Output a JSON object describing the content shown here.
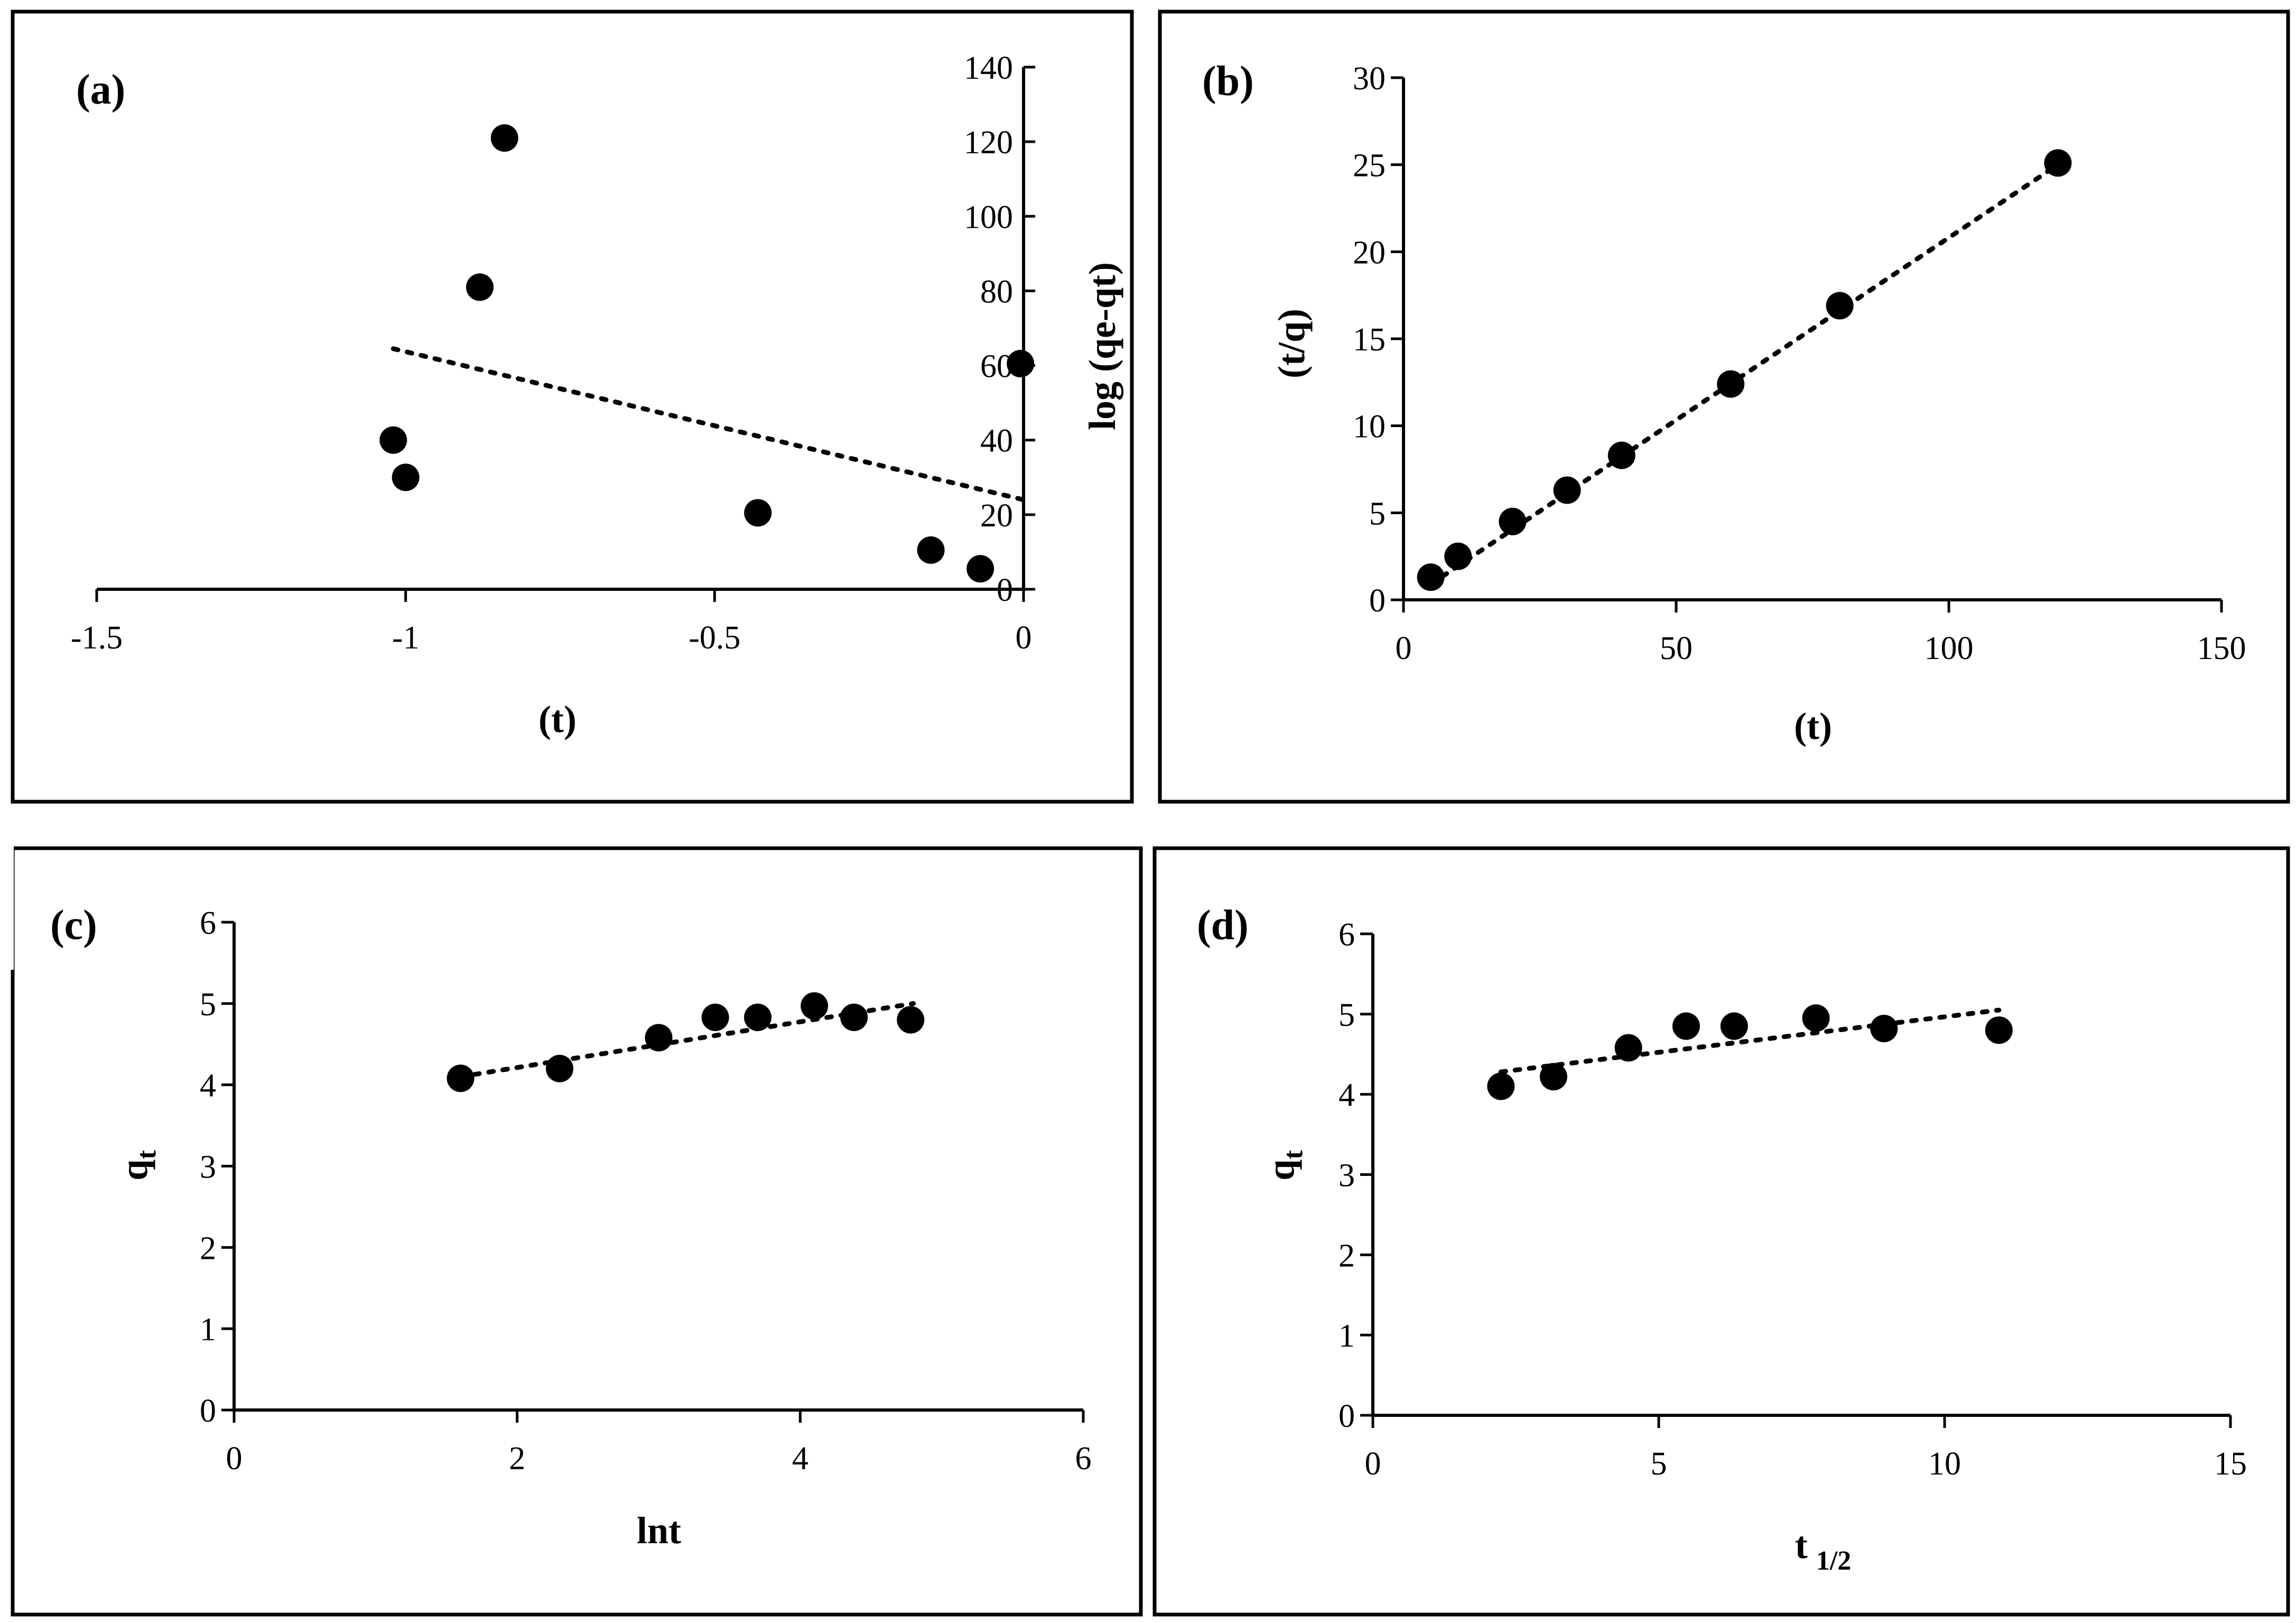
{
  "chart_data": [
    {
      "type": "scatter",
      "panel_label": "(a)",
      "xlabel": "(t)",
      "ylabel": "log (qe-qt)",
      "xlim": [
        -1.5,
        0
      ],
      "ylim": [
        0,
        140
      ],
      "xticks": [
        -1.5,
        -1,
        -0.5,
        0
      ],
      "yticks": [
        0,
        20,
        40,
        60,
        80,
        100,
        120,
        140
      ],
      "x": [
        -0.84,
        -0.88,
        -1.02,
        -1.0,
        -0.43,
        -0.15,
        -0.07,
        -0.005
      ],
      "y": [
        121,
        81,
        40,
        30,
        20.5,
        10.5,
        5.5,
        60.5
      ],
      "trendline": {
        "style": "dotted",
        "x": [
          -1.02,
          0
        ],
        "y": [
          64.5,
          24
        ]
      },
      "grid": false
    },
    {
      "type": "scatter",
      "panel_label": "(b)",
      "xlabel": "(t)",
      "ylabel": "(t/q)",
      "xlim": [
        0,
        150
      ],
      "ylim": [
        0,
        30
      ],
      "xticks": [
        0,
        50,
        100,
        150
      ],
      "yticks": [
        0,
        5,
        10,
        15,
        20,
        25,
        30
      ],
      "x": [
        5,
        10,
        20,
        30,
        40,
        60,
        80,
        120
      ],
      "y": [
        1.3,
        2.5,
        4.5,
        6.3,
        8.3,
        12.4,
        16.9,
        25.1
      ],
      "trendline": {
        "style": "dotted",
        "x": [
          5,
          120
        ],
        "y": [
          0.9,
          25
        ]
      },
      "grid": false
    },
    {
      "type": "scatter",
      "panel_label": "(c)",
      "xlabel": "lnt",
      "ylabel": "q",
      "ylabel_sub": "t",
      "xlim": [
        0,
        6
      ],
      "ylim": [
        0,
        6
      ],
      "xticks": [
        0,
        2,
        4,
        6
      ],
      "yticks": [
        0,
        1,
        2,
        3,
        4,
        5,
        6
      ],
      "x": [
        1.6,
        2.3,
        3.0,
        3.4,
        3.7,
        4.1,
        4.38,
        4.78
      ],
      "y": [
        4.08,
        4.2,
        4.58,
        4.83,
        4.83,
        4.97,
        4.83,
        4.8
      ],
      "trendline": {
        "style": "dotted",
        "x": [
          1.6,
          4.8
        ],
        "y": [
          4.1,
          5.0
        ]
      },
      "grid": false
    },
    {
      "type": "scatter",
      "panel_label": "(d)",
      "xlabel": "t",
      "xlabel_sub": "1/2",
      "ylabel": "q",
      "ylabel_sub": "t",
      "xlim": [
        0,
        15
      ],
      "ylim": [
        0,
        6
      ],
      "xticks": [
        0,
        5,
        10,
        15
      ],
      "yticks": [
        0,
        1,
        2,
        3,
        4,
        5,
        6
      ],
      "x": [
        2.24,
        3.16,
        4.47,
        5.48,
        6.32,
        7.75,
        8.94,
        10.95
      ],
      "y": [
        4.1,
        4.22,
        4.58,
        4.85,
        4.85,
        4.95,
        4.82,
        4.8
      ],
      "trendline": {
        "style": "dotted",
        "x": [
          2.24,
          10.95
        ],
        "y": [
          4.28,
          5.05
        ]
      },
      "grid": false
    }
  ]
}
